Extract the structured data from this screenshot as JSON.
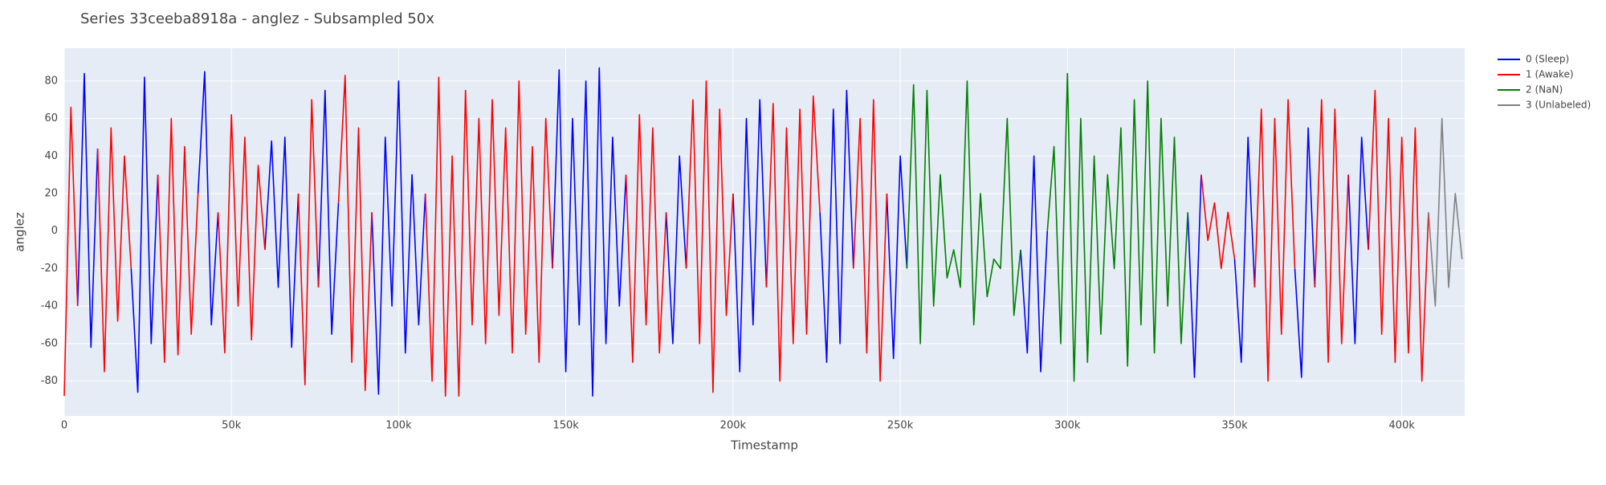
{
  "chart_data": {
    "type": "line",
    "title": "Series 33ceeba8918a - anglez - Subsampled 50x",
    "x_label": "Timestamp",
    "y_label": "anglez",
    "xlim": [
      0,
      418800
    ],
    "ylim": [
      -98.6,
      97.5
    ],
    "xticks": [
      0,
      {
        "value": 50000,
        "label": "50k"
      },
      {
        "value": 100000,
        "label": "100k"
      },
      {
        "value": 150000,
        "label": "150k"
      },
      {
        "value": 200000,
        "label": "200k"
      },
      {
        "value": 250000,
        "label": "250k"
      },
      {
        "value": 300000,
        "label": "300k"
      },
      {
        "value": 350000,
        "label": "350k"
      },
      {
        "value": 400000,
        "label": "400k"
      }
    ],
    "yticks": [
      -80,
      -60,
      -40,
      -20,
      0,
      20,
      40,
      60,
      80
    ],
    "grid": true,
    "legend_position": "right",
    "series": [
      {
        "name": "0 (Sleep)",
        "color": "#0000ff",
        "x": [
          4000,
          6000,
          8000,
          10000,
          null,
          20000,
          22000,
          24000,
          26000,
          28000,
          null,
          40000,
          42000,
          44000,
          46000,
          null,
          60000,
          62000,
          64000,
          66000,
          68000,
          70000,
          null,
          76000,
          78000,
          80000,
          82000,
          null,
          92000,
          94000,
          96000,
          98000,
          100000,
          102000,
          104000,
          106000,
          108000,
          null,
          146000,
          148000,
          150000,
          152000,
          154000,
          156000,
          158000,
          160000,
          162000,
          164000,
          166000,
          168000,
          null,
          180000,
          182000,
          184000,
          186000,
          null,
          200000,
          202000,
          204000,
          206000,
          208000,
          210000,
          null,
          226000,
          228000,
          230000,
          232000,
          234000,
          236000,
          null,
          246000,
          248000,
          250000,
          252000,
          null,
          286000,
          288000,
          290000,
          292000,
          294000,
          null,
          336000,
          338000,
          340000,
          null,
          350000,
          352000,
          354000,
          356000,
          null,
          368000,
          370000,
          372000,
          374000,
          null,
          384000,
          386000,
          388000,
          390000
        ],
        "values": [
          -40,
          84,
          -62,
          44,
          null,
          -20,
          -86,
          82,
          -60,
          30,
          null,
          20,
          85,
          -50,
          10,
          null,
          -10,
          48,
          -30,
          50,
          -62,
          20,
          null,
          -30,
          75,
          -55,
          15,
          null,
          10,
          -87,
          50,
          -40,
          80,
          -65,
          30,
          -50,
          20,
          null,
          -20,
          86,
          -75,
          60,
          -50,
          80,
          -88,
          87,
          -60,
          50,
          -40,
          30,
          null,
          10,
          -60,
          40,
          -20,
          null,
          20,
          -75,
          60,
          -50,
          70,
          -30,
          null,
          10,
          -70,
          65,
          -60,
          75,
          -20,
          null,
          20,
          -68,
          40,
          -20,
          null,
          -10,
          -65,
          40,
          -75,
          0,
          null,
          10,
          -78,
          30,
          null,
          -15,
          -70,
          50,
          -30,
          null,
          -20,
          -78,
          55,
          -30,
          null,
          30,
          -60,
          50,
          -10
        ]
      },
      {
        "name": "1 (Awake)",
        "color": "#ff0000",
        "x": [
          0,
          2000,
          4000,
          null,
          10000,
          12000,
          14000,
          16000,
          18000,
          20000,
          null,
          28000,
          30000,
          32000,
          34000,
          36000,
          38000,
          40000,
          null,
          46000,
          48000,
          50000,
          52000,
          54000,
          56000,
          58000,
          60000,
          null,
          70000,
          72000,
          74000,
          76000,
          null,
          82000,
          84000,
          86000,
          88000,
          90000,
          92000,
          null,
          108000,
          110000,
          112000,
          114000,
          116000,
          118000,
          120000,
          122000,
          124000,
          126000,
          128000,
          130000,
          132000,
          134000,
          136000,
          138000,
          140000,
          142000,
          144000,
          146000,
          null,
          168000,
          170000,
          172000,
          174000,
          176000,
          178000,
          180000,
          null,
          186000,
          188000,
          190000,
          192000,
          194000,
          196000,
          198000,
          200000,
          null,
          210000,
          212000,
          214000,
          216000,
          218000,
          220000,
          222000,
          224000,
          226000,
          null,
          236000,
          238000,
          240000,
          242000,
          244000,
          246000,
          null,
          340000,
          342000,
          344000,
          346000,
          348000,
          350000,
          null,
          356000,
          358000,
          360000,
          362000,
          364000,
          366000,
          368000,
          null,
          374000,
          376000,
          378000,
          380000,
          382000,
          384000,
          null,
          390000,
          392000,
          394000,
          396000,
          398000,
          400000,
          402000,
          404000,
          406000,
          408000
        ],
        "values": [
          -88,
          66,
          -40,
          null,
          44,
          -75,
          55,
          -48,
          40,
          -20,
          null,
          30,
          -70,
          60,
          -66,
          45,
          -55,
          20,
          null,
          10,
          -65,
          62,
          -40,
          50,
          -58,
          35,
          -10,
          null,
          20,
          -82,
          70,
          -30,
          null,
          15,
          83,
          -70,
          55,
          -85,
          10,
          null,
          20,
          -80,
          82,
          -88,
          40,
          -88,
          75,
          -50,
          60,
          -60,
          70,
          -45,
          55,
          -65,
          80,
          -55,
          45,
          -70,
          60,
          -20,
          null,
          30,
          -70,
          62,
          -50,
          55,
          -65,
          10,
          null,
          -20,
          70,
          -60,
          80,
          -86,
          65,
          -45,
          20,
          null,
          -30,
          68,
          -80,
          55,
          -60,
          65,
          -55,
          72,
          10,
          null,
          -20,
          60,
          -65,
          70,
          -80,
          20,
          null,
          30,
          -5,
          15,
          -20,
          10,
          -15,
          null,
          -30,
          65,
          -80,
          60,
          -55,
          70,
          -20,
          null,
          -30,
          70,
          -70,
          65,
          -60,
          30,
          null,
          -10,
          75,
          -55,
          60,
          -70,
          50,
          -65,
          55,
          -80,
          10
        ]
      },
      {
        "name": "2 (NaN)",
        "color": "#008000",
        "x": [
          252000,
          254000,
          256000,
          258000,
          260000,
          262000,
          264000,
          266000,
          268000,
          270000,
          272000,
          274000,
          276000,
          278000,
          280000,
          282000,
          284000,
          286000,
          null,
          294000,
          296000,
          298000,
          300000,
          302000,
          304000,
          306000,
          308000,
          310000,
          312000,
          314000,
          316000,
          318000,
          320000,
          322000,
          324000,
          326000,
          328000,
          330000,
          332000,
          334000,
          336000
        ],
        "values": [
          -20,
          78,
          -60,
          75,
          -40,
          30,
          -25,
          -10,
          -30,
          80,
          -50,
          20,
          -35,
          -15,
          -20,
          60,
          -45,
          -10,
          null,
          0,
          45,
          -60,
          84,
          -80,
          60,
          -70,
          40,
          -55,
          30,
          -20,
          55,
          -72,
          70,
          -50,
          80,
          -65,
          60,
          -40,
          50,
          -60,
          10
        ]
      },
      {
        "name": "3 (Unlabeled)",
        "color": "#808080",
        "x": [
          408000,
          410000,
          412000,
          414000,
          416000,
          418000
        ],
        "values": [
          10,
          -40,
          60,
          -30,
          20,
          -15
        ]
      }
    ]
  }
}
